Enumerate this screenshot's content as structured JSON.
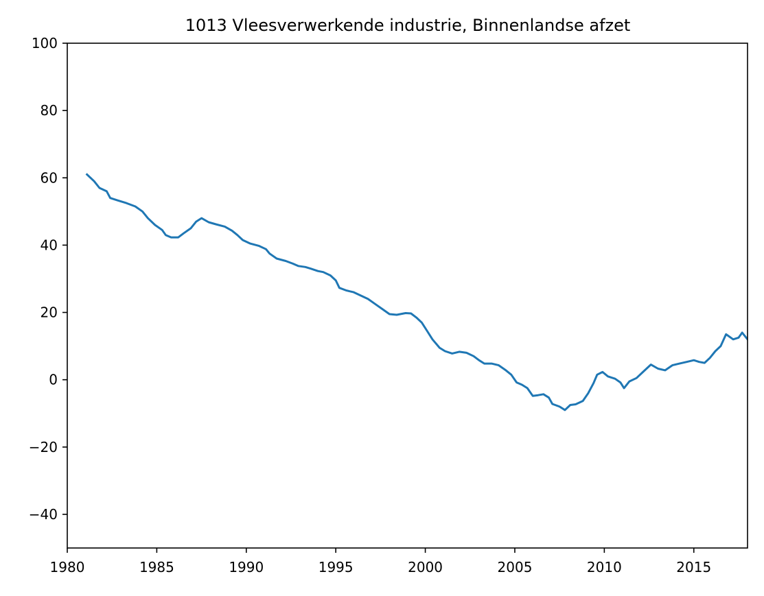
{
  "chart_data": {
    "type": "line",
    "title": "1013 Vleesverwerkende industrie, Binnenlandse afzet",
    "xlabel": "",
    "ylabel": "",
    "xlim": [
      1980,
      2018
    ],
    "ylim": [
      -50,
      100
    ],
    "x_ticks": [
      1980,
      1985,
      1990,
      1995,
      2000,
      2005,
      2010,
      2015
    ],
    "y_ticks": [
      -40,
      -20,
      0,
      20,
      40,
      60,
      80,
      100
    ],
    "grid": false,
    "line_color": "#1f77b4",
    "series": [
      {
        "name": "",
        "points": [
          [
            1981.1,
            61
          ],
          [
            1981.5,
            59
          ],
          [
            1981.8,
            57
          ],
          [
            1982.2,
            56
          ],
          [
            1982.4,
            54
          ],
          [
            1982.8,
            53.3
          ],
          [
            1983.3,
            52.5
          ],
          [
            1983.8,
            51.5
          ],
          [
            1984.2,
            50
          ],
          [
            1984.5,
            48
          ],
          [
            1984.9,
            46
          ],
          [
            1985.3,
            44.5
          ],
          [
            1985.5,
            43
          ],
          [
            1985.8,
            42.3
          ],
          [
            1986.2,
            42.3
          ],
          [
            1986.5,
            43.5
          ],
          [
            1986.9,
            45
          ],
          [
            1987.2,
            47
          ],
          [
            1987.5,
            48
          ],
          [
            1987.9,
            46.8
          ],
          [
            1988.3,
            46.2
          ],
          [
            1988.8,
            45.5
          ],
          [
            1989.2,
            44.3
          ],
          [
            1989.5,
            43
          ],
          [
            1989.8,
            41.5
          ],
          [
            1990.2,
            40.5
          ],
          [
            1990.7,
            39.8
          ],
          [
            1991.1,
            38.8
          ],
          [
            1991.3,
            37.5
          ],
          [
            1991.7,
            36
          ],
          [
            1992.2,
            35.3
          ],
          [
            1992.6,
            34.5
          ],
          [
            1992.9,
            33.8
          ],
          [
            1993.3,
            33.5
          ],
          [
            1993.6,
            33
          ],
          [
            1994.0,
            32.3
          ],
          [
            1994.3,
            32
          ],
          [
            1994.7,
            31
          ],
          [
            1995.0,
            29.5
          ],
          [
            1995.2,
            27.3
          ],
          [
            1995.6,
            26.5
          ],
          [
            1996.0,
            26
          ],
          [
            1996.4,
            25
          ],
          [
            1996.8,
            24
          ],
          [
            1997.2,
            22.5
          ],
          [
            1997.6,
            21
          ],
          [
            1998.0,
            19.5
          ],
          [
            1998.4,
            19.3
          ],
          [
            1998.9,
            19.8
          ],
          [
            1999.2,
            19.7
          ],
          [
            1999.5,
            18.5
          ],
          [
            1999.8,
            17
          ],
          [
            2000.1,
            14.5
          ],
          [
            2000.4,
            12
          ],
          [
            2000.8,
            9.5
          ],
          [
            2001.1,
            8.5
          ],
          [
            2001.5,
            7.8
          ],
          [
            2001.9,
            8.3
          ],
          [
            2002.3,
            8
          ],
          [
            2002.7,
            7
          ],
          [
            2003.0,
            5.8
          ],
          [
            2003.3,
            4.8
          ],
          [
            2003.7,
            4.8
          ],
          [
            2004.1,
            4.3
          ],
          [
            2004.5,
            2.8
          ],
          [
            2004.8,
            1.5
          ],
          [
            2005.1,
            -0.8
          ],
          [
            2005.4,
            -1.5
          ],
          [
            2005.7,
            -2.5
          ],
          [
            2006.0,
            -4.8
          ],
          [
            2006.3,
            -4.6
          ],
          [
            2006.6,
            -4.3
          ],
          [
            2006.9,
            -5.3
          ],
          [
            2007.1,
            -7.2
          ],
          [
            2007.5,
            -8
          ],
          [
            2007.8,
            -9
          ],
          [
            2008.1,
            -7.5
          ],
          [
            2008.4,
            -7.3
          ],
          [
            2008.8,
            -6.3
          ],
          [
            2009.1,
            -4
          ],
          [
            2009.4,
            -1
          ],
          [
            2009.6,
            1.5
          ],
          [
            2009.9,
            2.3
          ],
          [
            2010.2,
            1
          ],
          [
            2010.6,
            0.3
          ],
          [
            2010.9,
            -0.8
          ],
          [
            2011.1,
            -2.5
          ],
          [
            2011.4,
            -0.5
          ],
          [
            2011.8,
            0.5
          ],
          [
            2012.2,
            2.5
          ],
          [
            2012.6,
            4.5
          ],
          [
            2013.0,
            3.3
          ],
          [
            2013.4,
            2.8
          ],
          [
            2013.8,
            4.3
          ],
          [
            2014.2,
            4.8
          ],
          [
            2014.6,
            5.3
          ],
          [
            2015.0,
            5.8
          ],
          [
            2015.3,
            5.3
          ],
          [
            2015.6,
            5
          ],
          [
            2015.9,
            6.5
          ],
          [
            2016.2,
            8.5
          ],
          [
            2016.5,
            10
          ],
          [
            2016.8,
            13.5
          ],
          [
            2017.2,
            12
          ],
          [
            2017.5,
            12.5
          ],
          [
            2017.7,
            14
          ],
          [
            2018.0,
            12
          ]
        ]
      }
    ]
  }
}
